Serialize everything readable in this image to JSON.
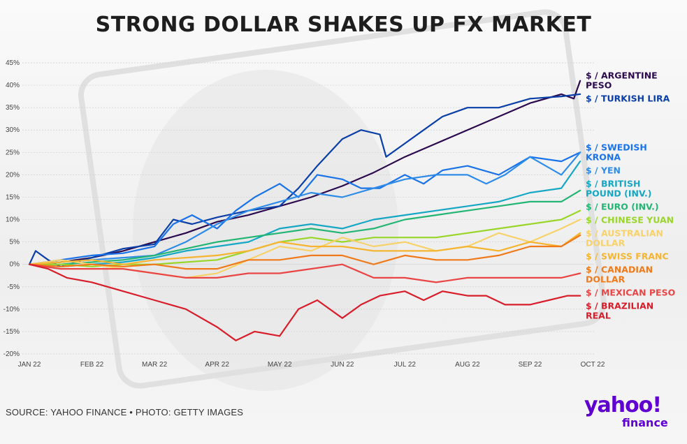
{
  "title": "STRONG DOLLAR SHAKES UP FX MARKET",
  "source": "SOURCE: YAHOO FINANCE • PHOTO: GETTY IMAGES",
  "brand": {
    "wordmark": "yahoo!",
    "subtitle": "finance",
    "color": "#5f01d1"
  },
  "chart_data": {
    "type": "line",
    "title": "STRONG DOLLAR SHAKES UP FX MARKET",
    "xlabel": "",
    "ylabel": "",
    "x_ticks": [
      "JAN 22",
      "FEB 22",
      "MAR 22",
      "APR 22",
      "MAY 22",
      "JUN 22",
      "JUL 22",
      "AUG 22",
      "SEP 22",
      "OCT 22"
    ],
    "y_ticks": [
      "45%",
      "40%",
      "35%",
      "30%",
      "25%",
      "20%",
      "15%",
      "10%",
      "5%",
      "0%",
      "-5%",
      "-10%",
      "-15%",
      "-20%"
    ],
    "ylim": [
      -20,
      45
    ],
    "grid": true,
    "legend_placement": "right (labels at line ends)",
    "series": [
      {
        "name": "$ / ARGENTINE PESO",
        "label_lines": [
          "$ / ARGENTINE",
          "PESO"
        ],
        "color": "#2b0a4e",
        "points": [
          [
            0,
            0
          ],
          [
            0.5,
            0.5
          ],
          [
            1,
            1.5
          ],
          [
            1.5,
            3
          ],
          [
            2,
            5
          ],
          [
            2.5,
            7
          ],
          [
            3,
            9.5
          ],
          [
            3.5,
            11
          ],
          [
            4,
            13
          ],
          [
            4.5,
            15
          ],
          [
            5,
            17.5
          ],
          [
            5.5,
            20.5
          ],
          [
            6,
            24
          ],
          [
            6.5,
            27
          ],
          [
            7,
            30
          ],
          [
            7.5,
            33
          ],
          [
            8,
            36
          ],
          [
            8.5,
            38
          ],
          [
            8.7,
            37
          ],
          [
            8.8,
            41
          ]
        ]
      },
      {
        "name": "$ / TURKISH LIRA",
        "label_lines": [
          "$ / TURKISH LIRA"
        ],
        "color": "#0a3fa8",
        "points": [
          [
            0,
            0
          ],
          [
            0.1,
            3
          ],
          [
            0.3,
            1
          ],
          [
            0.5,
            -0.5
          ],
          [
            1,
            1.5
          ],
          [
            1.5,
            3.5
          ],
          [
            2,
            4.5
          ],
          [
            2.3,
            10
          ],
          [
            2.6,
            9
          ],
          [
            3,
            10.5
          ],
          [
            3.5,
            12
          ],
          [
            4,
            13
          ],
          [
            4.3,
            17
          ],
          [
            4.6,
            22
          ],
          [
            5,
            28
          ],
          [
            5.3,
            30
          ],
          [
            5.6,
            29
          ],
          [
            5.7,
            24
          ],
          [
            6,
            27
          ],
          [
            6.3,
            30
          ],
          [
            6.6,
            33
          ],
          [
            7,
            35
          ],
          [
            7.5,
            35
          ],
          [
            8,
            37
          ],
          [
            8.5,
            37.5
          ],
          [
            8.8,
            38
          ]
        ]
      },
      {
        "name": "$ / SWEDISH KRONA",
        "label_lines": [
          "$ / SWEDISH",
          "KRONA"
        ],
        "color": "#1a73e8",
        "points": [
          [
            0,
            0
          ],
          [
            0.5,
            1
          ],
          [
            1,
            2
          ],
          [
            1.5,
            2.5
          ],
          [
            2,
            4
          ],
          [
            2.3,
            9
          ],
          [
            2.6,
            11
          ],
          [
            3,
            8
          ],
          [
            3.3,
            12
          ],
          [
            3.6,
            15
          ],
          [
            4,
            18
          ],
          [
            4.3,
            15
          ],
          [
            4.6,
            20
          ],
          [
            5,
            19
          ],
          [
            5.3,
            17
          ],
          [
            5.6,
            17
          ],
          [
            6,
            20
          ],
          [
            6.3,
            18
          ],
          [
            6.6,
            21
          ],
          [
            7,
            22
          ],
          [
            7.5,
            20
          ],
          [
            8,
            24
          ],
          [
            8.5,
            23
          ],
          [
            8.8,
            25
          ]
        ]
      },
      {
        "name": "$ / YEN",
        "label_lines": [
          "$ / YEN"
        ],
        "color": "#2e8ce8",
        "points": [
          [
            0,
            0
          ],
          [
            0.5,
            0.5
          ],
          [
            1,
            1
          ],
          [
            1.5,
            1.5
          ],
          [
            2,
            2
          ],
          [
            2.5,
            5
          ],
          [
            3,
            9
          ],
          [
            3.5,
            12
          ],
          [
            4,
            14
          ],
          [
            4.5,
            16
          ],
          [
            5,
            15
          ],
          [
            5.5,
            17
          ],
          [
            6,
            19
          ],
          [
            6.5,
            20
          ],
          [
            7,
            20
          ],
          [
            7.3,
            18
          ],
          [
            7.6,
            20
          ],
          [
            8,
            24
          ],
          [
            8.5,
            20
          ],
          [
            8.8,
            25
          ]
        ]
      },
      {
        "name": "$ / BRITISH POUND (INV.)",
        "label_lines": [
          "$ / BRITISH",
          "POUND (INV.)"
        ],
        "color": "#16a7c4",
        "points": [
          [
            0,
            0
          ],
          [
            0.5,
            -0.5
          ],
          [
            1,
            0
          ],
          [
            1.5,
            0.5
          ],
          [
            2,
            1.5
          ],
          [
            2.5,
            3
          ],
          [
            3,
            4
          ],
          [
            3.5,
            5
          ],
          [
            4,
            8
          ],
          [
            4.5,
            9
          ],
          [
            5,
            8
          ],
          [
            5.5,
            10
          ],
          [
            6,
            11
          ],
          [
            6.5,
            12
          ],
          [
            7,
            13
          ],
          [
            7.5,
            14
          ],
          [
            8,
            16
          ],
          [
            8.5,
            17
          ],
          [
            8.8,
            23
          ]
        ]
      },
      {
        "name": "$ / EURO (INV.)",
        "label_lines": [
          "$ / EURO (INV.)"
        ],
        "color": "#22b573",
        "points": [
          [
            0,
            0
          ],
          [
            0.5,
            0
          ],
          [
            1,
            0.5
          ],
          [
            1.5,
            1
          ],
          [
            2,
            2
          ],
          [
            2.5,
            3.5
          ],
          [
            3,
            5
          ],
          [
            3.5,
            6
          ],
          [
            4,
            7
          ],
          [
            4.5,
            8
          ],
          [
            5,
            7
          ],
          [
            5.5,
            8
          ],
          [
            6,
            10
          ],
          [
            6.5,
            11
          ],
          [
            7,
            12
          ],
          [
            7.5,
            13
          ],
          [
            8,
            14
          ],
          [
            8.5,
            14
          ],
          [
            8.8,
            16.5
          ]
        ]
      },
      {
        "name": "$ / CHINESE YUAN",
        "label_lines": [
          "$ / CHINESE YUAN"
        ],
        "color": "#9ad62a",
        "points": [
          [
            0,
            0
          ],
          [
            0.5,
            0
          ],
          [
            1,
            -0.5
          ],
          [
            1.5,
            0
          ],
          [
            2,
            0
          ],
          [
            2.5,
            0.5
          ],
          [
            3,
            1
          ],
          [
            3.5,
            3
          ],
          [
            4,
            5
          ],
          [
            4.5,
            6
          ],
          [
            5,
            5
          ],
          [
            5.5,
            6
          ],
          [
            6,
            6
          ],
          [
            6.5,
            6
          ],
          [
            7,
            7
          ],
          [
            7.5,
            8
          ],
          [
            8,
            9
          ],
          [
            8.5,
            10
          ],
          [
            8.8,
            12
          ]
        ]
      },
      {
        "name": "$ / AUSTRALIAN DOLLAR",
        "label_lines": [
          "$ / AUSTRALIAN",
          "DOLLAR"
        ],
        "color": "#f7d26b",
        "points": [
          [
            0,
            0
          ],
          [
            0.5,
            1
          ],
          [
            1,
            0
          ],
          [
            1.5,
            -1
          ],
          [
            2,
            -2
          ],
          [
            2.5,
            -3
          ],
          [
            3,
            -2
          ],
          [
            3.5,
            1
          ],
          [
            4,
            4
          ],
          [
            4.5,
            3
          ],
          [
            5,
            6
          ],
          [
            5.5,
            4
          ],
          [
            6,
            5
          ],
          [
            6.5,
            3
          ],
          [
            7,
            4
          ],
          [
            7.5,
            7
          ],
          [
            8,
            5
          ],
          [
            8.5,
            8
          ],
          [
            8.8,
            10
          ]
        ]
      },
      {
        "name": "$ / SWISS FRANC",
        "label_lines": [
          "$ / SWISS FRANC"
        ],
        "color": "#f5b532",
        "points": [
          [
            0,
            0
          ],
          [
            0.5,
            0.5
          ],
          [
            1,
            1
          ],
          [
            1.5,
            0
          ],
          [
            2,
            1
          ],
          [
            2.5,
            1.5
          ],
          [
            3,
            2
          ],
          [
            3.5,
            3
          ],
          [
            4,
            5
          ],
          [
            4.5,
            4
          ],
          [
            5,
            4
          ],
          [
            5.5,
            3
          ],
          [
            6,
            3
          ],
          [
            6.5,
            3
          ],
          [
            7,
            4
          ],
          [
            7.5,
            3
          ],
          [
            8,
            5
          ],
          [
            8.5,
            4
          ],
          [
            8.8,
            7
          ]
        ]
      },
      {
        "name": "$ / CANADIAN DOLLAR",
        "label_lines": [
          "$ / CANADIAN",
          "DOLLAR"
        ],
        "color": "#f07a1a",
        "points": [
          [
            0,
            0
          ],
          [
            0.5,
            -0.5
          ],
          [
            1,
            0
          ],
          [
            1.5,
            -0.5
          ],
          [
            2,
            0
          ],
          [
            2.5,
            -1
          ],
          [
            3,
            -1
          ],
          [
            3.5,
            1
          ],
          [
            4,
            1
          ],
          [
            4.5,
            2
          ],
          [
            5,
            2
          ],
          [
            5.5,
            0
          ],
          [
            6,
            2
          ],
          [
            6.5,
            1
          ],
          [
            7,
            1
          ],
          [
            7.5,
            2
          ],
          [
            8,
            4
          ],
          [
            8.5,
            4
          ],
          [
            8.8,
            6.5
          ]
        ]
      },
      {
        "name": "$ / MEXICAN PESO",
        "label_lines": [
          "$ / MEXICAN PESO"
        ],
        "color": "#e94545",
        "points": [
          [
            0,
            0
          ],
          [
            0.5,
            -1
          ],
          [
            1,
            -1
          ],
          [
            1.5,
            -1
          ],
          [
            2,
            -2
          ],
          [
            2.5,
            -3
          ],
          [
            3,
            -3
          ],
          [
            3.5,
            -2
          ],
          [
            4,
            -2
          ],
          [
            4.5,
            -1
          ],
          [
            5,
            0
          ],
          [
            5.5,
            -3
          ],
          [
            6,
            -3
          ],
          [
            6.5,
            -4
          ],
          [
            7,
            -3
          ],
          [
            7.5,
            -3
          ],
          [
            8,
            -3
          ],
          [
            8.5,
            -3
          ],
          [
            8.8,
            -2
          ]
        ]
      },
      {
        "name": "$ / BRAZILIAN REAL",
        "label_lines": [
          "$ / BRAZILIAN",
          "REAL"
        ],
        "color": "#d81e2a",
        "points": [
          [
            0,
            0
          ],
          [
            0.3,
            -1
          ],
          [
            0.6,
            -3
          ],
          [
            1,
            -4
          ],
          [
            1.5,
            -6
          ],
          [
            2,
            -8
          ],
          [
            2.5,
            -10
          ],
          [
            3,
            -14
          ],
          [
            3.3,
            -17
          ],
          [
            3.6,
            -15
          ],
          [
            4,
            -16
          ],
          [
            4.3,
            -10
          ],
          [
            4.6,
            -8
          ],
          [
            5,
            -12
          ],
          [
            5.3,
            -9
          ],
          [
            5.6,
            -7
          ],
          [
            6,
            -6
          ],
          [
            6.3,
            -8
          ],
          [
            6.6,
            -6
          ],
          [
            7,
            -7
          ],
          [
            7.3,
            -7
          ],
          [
            7.6,
            -9
          ],
          [
            8,
            -9
          ],
          [
            8.3,
            -8
          ],
          [
            8.6,
            -7
          ],
          [
            8.8,
            -7
          ]
        ]
      }
    ]
  }
}
